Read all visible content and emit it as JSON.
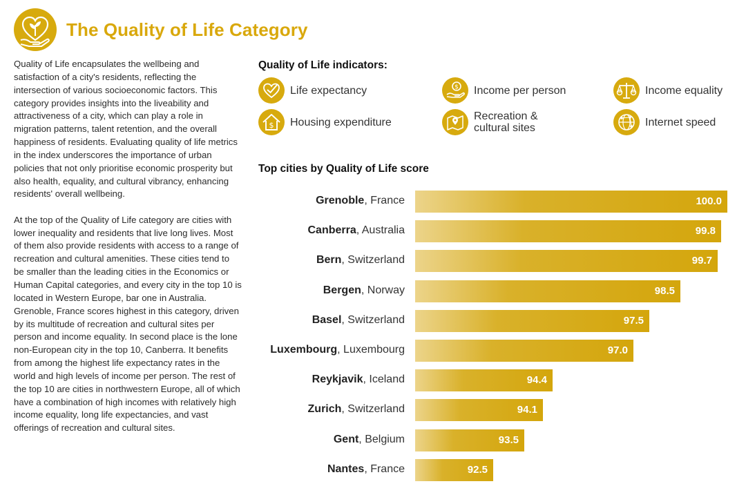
{
  "header": {
    "title": "The Quality of Life Category",
    "icon": "heart-leaf-hand-icon"
  },
  "intro": {
    "paragraph1": "Quality of Life encapsulates the wellbeing and satisfaction of a city's residents, reflecting the intersection of various socioeconomic factors. This category provides insights into the liveability and attractiveness of a city, which can play a role in migration patterns, talent retention, and the overall happiness of residents. Evaluating quality of life metrics in the index underscores the importance of urban policies that not only prioritise economic prosperity but also health, equality, and cultural vibrancy, enhancing residents' overall wellbeing.",
    "paragraph2": "At the top of the Quality of Life category are cities with lower inequality and residents that live long lives. Most of them also provide residents with access to a range of recreation and cultural amenities. These cities tend to be smaller than the leading cities in the Economics or Human Capital categories, and every city in the top 10 is located in Western Europe, bar one in Australia. Grenoble, France scores highest in this category, driven by its multitude of recreation and cultural sites per person and income equality. In second place is the lone non-European city in the top 10, Canberra. It benefits from among the highest life expectancy rates in the world and high levels of income per person. The rest of the top 10 are cities in northwestern Europe, all of which have a combination of high incomes with relatively high income equality, long life expectancies, and vast offerings of recreation and cultural sites."
  },
  "indicators": {
    "heading": "Quality of Life indicators:",
    "items": [
      {
        "label": "Life expectancy",
        "icon": "heart-check-icon"
      },
      {
        "label": "Income per person",
        "icon": "hand-coin-icon"
      },
      {
        "label": "Income equality",
        "icon": "scales-icon"
      },
      {
        "label": "Housing expenditure",
        "icon": "house-dollar-icon"
      },
      {
        "label": "Recreation &\ncultural sites",
        "icon": "map-pin-icon"
      },
      {
        "label": "Internet speed",
        "icon": "network-globe-icon"
      }
    ]
  },
  "colors": {
    "accent": "#d7aa0e",
    "title": "#d9a80c",
    "bar_light": "#ecd48a"
  },
  "chart_data": {
    "type": "bar",
    "orientation": "horizontal",
    "title": "Top cities by Quality of Life score",
    "categories": [
      {
        "city": "Grenoble",
        "country": "France"
      },
      {
        "city": "Canberra",
        "country": "Australia"
      },
      {
        "city": "Bern",
        "country": "Switzerland"
      },
      {
        "city": "Bergen",
        "country": "Norway"
      },
      {
        "city": "Basel",
        "country": "Switzerland"
      },
      {
        "city": "Luxembourg",
        "country": "Luxembourg"
      },
      {
        "city": "Reykjavik",
        "country": "Iceland"
      },
      {
        "city": "Zurich",
        "country": "Switzerland"
      },
      {
        "city": "Gent",
        "country": "Belgium"
      },
      {
        "city": "Nantes",
        "country": "France"
      }
    ],
    "values": [
      100.0,
      99.8,
      99.7,
      98.5,
      97.5,
      97.0,
      94.4,
      94.1,
      93.5,
      92.5
    ],
    "value_labels": [
      "100.0",
      "99.8",
      "99.7",
      "98.5",
      "97.5",
      "97.0",
      "94.4",
      "94.1",
      "93.5",
      "92.5"
    ],
    "xlim": [
      90.0,
      100.0
    ],
    "grid": false,
    "legend": "none"
  }
}
